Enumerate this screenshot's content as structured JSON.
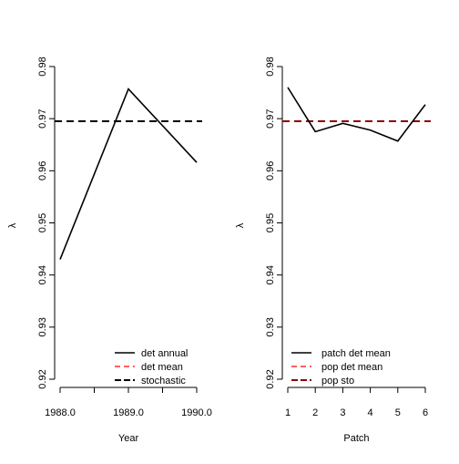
{
  "chart_data": [
    {
      "type": "line",
      "xlabel": "Year",
      "ylabel": "λ",
      "x": [
        1988.0,
        1989.0,
        1990.0
      ],
      "xlim": [
        1988.0,
        1990.0
      ],
      "ylim": [
        0.92,
        0.98
      ],
      "x_tick_values": [
        1988.0,
        1988.5,
        1989.0,
        1989.5,
        1990.0
      ],
      "x_tick_labels": [
        "1988.0",
        "",
        "1989.0",
        "",
        "1990.0"
      ],
      "y_tick_values": [
        0.92,
        0.93,
        0.94,
        0.95,
        0.96,
        0.97,
        0.98
      ],
      "y_tick_labels": [
        "0.92",
        "0.93",
        "0.94",
        "0.95",
        "0.96",
        "0.97",
        "0.98"
      ],
      "series": [
        {
          "name": "det annual",
          "values": [
            0.943,
            0.9757,
            0.9616
          ],
          "color": "#000000",
          "style": "solid"
        },
        {
          "name": "det mean",
          "constant": 0.9695,
          "color": "#ff0000",
          "style": "dashed"
        },
        {
          "name": "stochastic",
          "constant": 0.9695,
          "color": "#000000",
          "style": "dashed"
        }
      ],
      "legend_position": "bottom-right"
    },
    {
      "type": "line",
      "xlabel": "Patch",
      "ylabel": "λ",
      "x": [
        1,
        2,
        3,
        4,
        5,
        6
      ],
      "xlim": [
        1,
        6
      ],
      "ylim": [
        0.92,
        0.98
      ],
      "x_tick_values": [
        1,
        2,
        3,
        4,
        5,
        6
      ],
      "x_tick_labels": [
        "1",
        "2",
        "3",
        "4",
        "5",
        "6"
      ],
      "y_tick_values": [
        0.92,
        0.93,
        0.94,
        0.95,
        0.96,
        0.97,
        0.98
      ],
      "y_tick_labels": [
        "0.92",
        "0.93",
        "0.94",
        "0.95",
        "0.96",
        "0.97",
        "0.98"
      ],
      "series": [
        {
          "name": "patch det mean",
          "values": [
            0.976,
            0.9675,
            0.9691,
            0.9678,
            0.9657,
            0.9727
          ],
          "color": "#000000",
          "style": "solid"
        },
        {
          "name": "pop det mean",
          "constant": 0.9695,
          "color": "#ff0000",
          "style": "dashed"
        },
        {
          "name": "pop sto",
          "constant": 0.9695,
          "color": "#8b0000",
          "style": "dashed"
        }
      ],
      "legend_position": "bottom-right"
    }
  ]
}
